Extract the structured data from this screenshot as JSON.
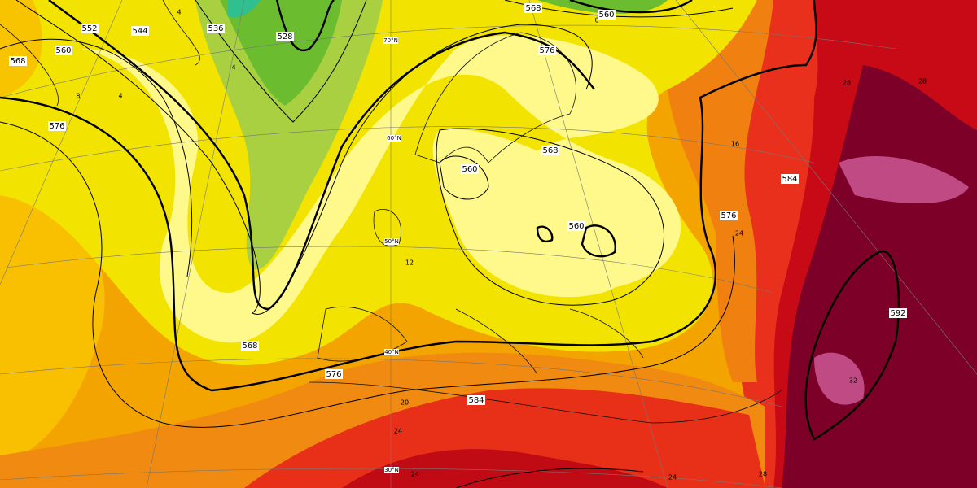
{
  "contour_labels": [
    552,
    544,
    536,
    528,
    568,
    560,
    568,
    560,
    576,
    576,
    568,
    560,
    560,
    568,
    576,
    584,
    584,
    576,
    592
  ],
  "latitude_labels": [
    "70°N",
    "60°N",
    "50°N",
    "40°N",
    "30°N"
  ],
  "temperature_labels": [
    "4",
    "4",
    "8",
    "4",
    "0",
    "12",
    "16",
    "20",
    "24",
    "24",
    "24",
    "28",
    "28",
    "28",
    "24",
    "32"
  ]
}
